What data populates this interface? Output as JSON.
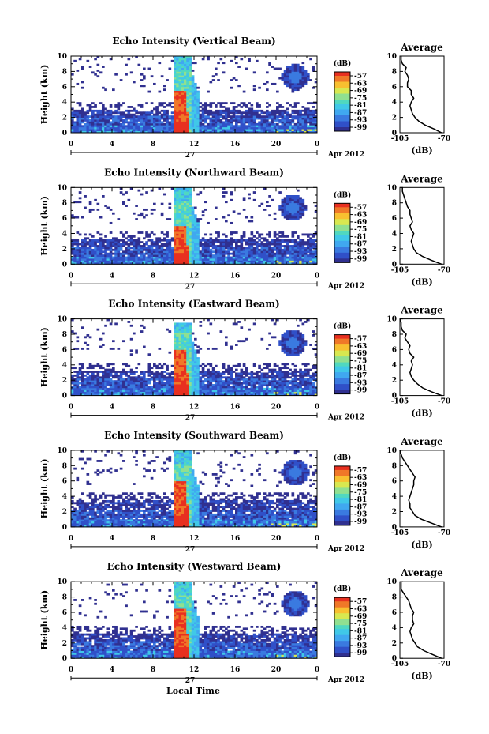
{
  "figure": {
    "x_axis_label": "Local Time",
    "date_label": "Apr 2012",
    "day_label": "27"
  },
  "colors": {
    "colormap": [
      "#303090",
      "#3050c8",
      "#3a7ae0",
      "#40a8f0",
      "#40c8e8",
      "#50d8c0",
      "#90e090",
      "#d8e850",
      "#f8c030",
      "#f07828",
      "#e83020"
    ],
    "line": "#000000"
  },
  "chart_data": [
    {
      "type": "heatmap",
      "title": "Echo Intensity (Vertical Beam)",
      "ylabel": "Height (km)",
      "x_ticks": [
        "0",
        "4",
        "8",
        "12",
        "16",
        "20",
        "0"
      ],
      "y_ticks": [
        "0",
        "2",
        "4",
        "6",
        "8",
        "10"
      ],
      "xlim": [
        0,
        24
      ],
      "ylim": [
        0,
        10
      ],
      "colorbar": {
        "label": "(dB)",
        "ticks": [
          "-57",
          "-63",
          "-69",
          "-75",
          "-81",
          "-87",
          "-93",
          "-99"
        ]
      },
      "features": {
        "boundary_layer_top_km": 3.0,
        "convective_core_hours": [
          10.0,
          11.5
        ],
        "red_core_top_km": 5.5,
        "cyan_column_top_km": 10.0,
        "upper_cloud_hours": [
          20.5,
          23.0
        ],
        "upper_cloud_km": [
          5.5,
          8.8
        ]
      },
      "average_profile": {
        "title": "Average",
        "xlabel": "(dB)",
        "x_ticks": [
          "-105",
          "-70"
        ],
        "y_ticks": [
          "0",
          "2",
          "4",
          "6",
          "8",
          "10"
        ],
        "xlim": [
          -105,
          -70
        ],
        "height_km": [
          0,
          0.5,
          1,
          1.5,
          2,
          2.5,
          3,
          3.5,
          4,
          4.5,
          5,
          5.5,
          6,
          6.5,
          7,
          7.5,
          8,
          8.5,
          9,
          9.5,
          10
        ],
        "db": [
          -72,
          -78,
          -85,
          -90,
          -93,
          -95,
          -96,
          -97,
          -96,
          -94,
          -96,
          -96,
          -99,
          -99,
          -98,
          -99,
          -101,
          -100,
          -103,
          -104,
          -104
        ]
      }
    },
    {
      "type": "heatmap",
      "title": "Echo Intensity (Northward Beam)",
      "ylabel": "Height (km)",
      "x_ticks": [
        "0",
        "4",
        "8",
        "12",
        "16",
        "20",
        "0"
      ],
      "y_ticks": [
        "0",
        "2",
        "4",
        "6",
        "8",
        "10"
      ],
      "xlim": [
        0,
        24
      ],
      "ylim": [
        0,
        10
      ],
      "colorbar": {
        "label": "(dB)",
        "ticks": [
          "-57",
          "-63",
          "-69",
          "-75",
          "-81",
          "-87",
          "-93",
          "-99"
        ]
      },
      "features": {
        "boundary_layer_top_km": 3.2,
        "convective_core_hours": [
          10.0,
          11.5
        ],
        "red_core_top_km": 5.0,
        "cyan_column_top_km": 10.0,
        "upper_cloud_hours": [
          20.0,
          23.0
        ],
        "upper_cloud_km": [
          5.5,
          9.0
        ]
      },
      "average_profile": {
        "title": "Average",
        "xlabel": "(dB)",
        "x_ticks": [
          "-105",
          "-70"
        ],
        "y_ticks": [
          "0",
          "2",
          "4",
          "6",
          "8",
          "10"
        ],
        "xlim": [
          -105,
          -70
        ],
        "height_km": [
          0,
          0.5,
          1,
          1.5,
          2,
          2.5,
          3,
          3.5,
          4,
          4.5,
          5,
          5.5,
          6,
          6.5,
          7,
          7.5,
          8,
          8.5,
          9,
          9.5,
          10
        ],
        "db": [
          -72,
          -80,
          -87,
          -92,
          -94,
          -95,
          -96,
          -95,
          -94,
          -96,
          -97,
          -95,
          -96,
          -97,
          -97,
          -99,
          -100,
          -101,
          -102,
          -103,
          -103
        ]
      }
    },
    {
      "type": "heatmap",
      "title": "Echo Intensity (Eastward Beam)",
      "ylabel": "Height (km)",
      "x_ticks": [
        "0",
        "4",
        "8",
        "12",
        "16",
        "20",
        "0"
      ],
      "y_ticks": [
        "0",
        "2",
        "4",
        "6",
        "8",
        "10"
      ],
      "xlim": [
        0,
        24
      ],
      "ylim": [
        0,
        10
      ],
      "colorbar": {
        "label": "(dB)",
        "ticks": [
          "-57",
          "-63",
          "-69",
          "-75",
          "-81",
          "-87",
          "-93",
          "-99"
        ]
      },
      "features": {
        "boundary_layer_top_km": 3.2,
        "convective_core_hours": [
          10.0,
          11.5
        ],
        "red_core_top_km": 6.0,
        "cyan_column_top_km": 9.5,
        "upper_cloud_hours": [
          20.0,
          23.0
        ],
        "upper_cloud_km": [
          5.0,
          8.5
        ]
      },
      "average_profile": {
        "title": "Average",
        "xlabel": "(dB)",
        "x_ticks": [
          "-105",
          "-70"
        ],
        "y_ticks": [
          "0",
          "2",
          "4",
          "6",
          "8",
          "10"
        ],
        "xlim": [
          -105,
          -70
        ],
        "height_km": [
          0,
          0.5,
          1,
          1.5,
          2,
          2.5,
          3,
          3.5,
          4,
          4.5,
          5,
          5.5,
          6,
          6.5,
          7,
          7.5,
          8,
          8.5,
          9,
          9.5,
          10
        ],
        "db": [
          -72,
          -80,
          -87,
          -91,
          -94,
          -96,
          -97,
          -96,
          -95,
          -96,
          -94,
          -97,
          -98,
          -97,
          -99,
          -101,
          -100,
          -103,
          -104,
          -104,
          -105
        ]
      }
    },
    {
      "type": "heatmap",
      "title": "Echo Intensity (Southward Beam)",
      "ylabel": "Height (km)",
      "x_ticks": [
        "0",
        "4",
        "8",
        "12",
        "16",
        "20",
        "0"
      ],
      "y_ticks": [
        "0",
        "2",
        "4",
        "6",
        "8",
        "10"
      ],
      "xlim": [
        0,
        24
      ],
      "ylim": [
        0,
        10
      ],
      "colorbar": {
        "label": "(dB)",
        "ticks": [
          "-57",
          "-63",
          "-69",
          "-75",
          "-81",
          "-87",
          "-93",
          "-99"
        ]
      },
      "features": {
        "boundary_layer_top_km": 3.3,
        "convective_core_hours": [
          10.0,
          11.5
        ],
        "red_core_top_km": 6.0,
        "cyan_column_top_km": 10.0,
        "upper_cloud_hours": [
          20.5,
          23.0
        ],
        "upper_cloud_km": [
          5.0,
          9.0
        ]
      },
      "average_profile": {
        "title": "Average",
        "xlabel": "(dB)",
        "x_ticks": [
          "-105",
          "-70"
        ],
        "y_ticks": [
          "0",
          "2",
          "4",
          "6",
          "8",
          "10"
        ],
        "xlim": [
          -105,
          -70
        ],
        "height_km": [
          0,
          0.5,
          1,
          1.5,
          2,
          2.5,
          3,
          3.5,
          4,
          4.5,
          5,
          5.5,
          6,
          6.5,
          7,
          7.5,
          8,
          8.5,
          9,
          9.5,
          10
        ],
        "db": [
          -72,
          -80,
          -88,
          -93,
          -95,
          -97,
          -97,
          -98,
          -97,
          -96,
          -95,
          -94,
          -94,
          -93,
          -95,
          -97,
          -99,
          -101,
          -103,
          -104,
          -105
        ]
      }
    },
    {
      "type": "heatmap",
      "title": "Echo Intensity (Westward Beam)",
      "ylabel": "Height (km)",
      "x_ticks": [
        "0",
        "4",
        "8",
        "12",
        "16",
        "20",
        "0"
      ],
      "y_ticks": [
        "0",
        "2",
        "4",
        "6",
        "8",
        "10"
      ],
      "xlim": [
        0,
        24
      ],
      "ylim": [
        0,
        10
      ],
      "colorbar": {
        "label": "(dB)",
        "ticks": [
          "-57",
          "-63",
          "-69",
          "-75",
          "-81",
          "-87",
          "-93",
          "-99"
        ]
      },
      "features": {
        "boundary_layer_top_km": 3.2,
        "convective_core_hours": [
          10.0,
          11.5
        ],
        "red_core_top_km": 6.5,
        "cyan_column_top_km": 10.0,
        "upper_cloud_hours": [
          20.5,
          23.0
        ],
        "upper_cloud_km": [
          5.0,
          9.0
        ]
      },
      "average_profile": {
        "title": "Average",
        "xlabel": "(dB)",
        "x_ticks": [
          "-105",
          "-70"
        ],
        "y_ticks": [
          "0",
          "2",
          "4",
          "6",
          "8",
          "10"
        ],
        "xlim": [
          -105,
          -70
        ],
        "height_km": [
          0,
          0.5,
          1,
          1.5,
          2,
          2.5,
          3,
          3.5,
          4,
          4.5,
          5,
          5.5,
          6,
          6.5,
          7,
          7.5,
          8,
          8.5,
          9,
          9.5,
          10
        ],
        "db": [
          -72,
          -79,
          -86,
          -91,
          -93,
          -95,
          -96,
          -97,
          -96,
          -94,
          -95,
          -95,
          -94,
          -96,
          -97,
          -98,
          -100,
          -102,
          -104,
          -104,
          -104
        ]
      }
    }
  ]
}
